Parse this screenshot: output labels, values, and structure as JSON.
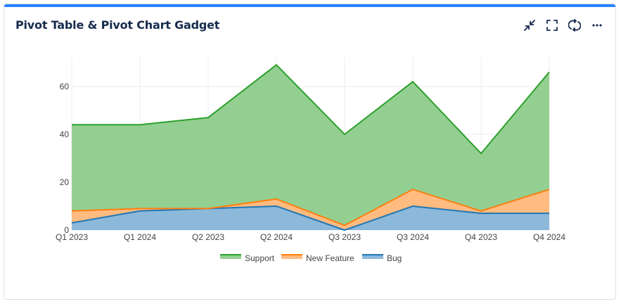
{
  "header": {
    "title": "Pivot Table & Pivot Chart Gadget",
    "actions": [
      "minimize-icon",
      "fullscreen-icon",
      "refresh-icon",
      "more-icon"
    ]
  },
  "colors": {
    "accent": "#2684ff",
    "support_fill": "#94cf92",
    "support_line": "#2ca02c",
    "newfeature_fill": "#ffbb80",
    "newfeature_line": "#ff7f0e",
    "bug_fill": "#8cb8da",
    "bug_line": "#1f77b4"
  },
  "chart_data": {
    "type": "area",
    "stacked": true,
    "categories": [
      "Q1 2023",
      "Q1 2024",
      "Q2 2023",
      "Q2 2024",
      "Q3 2023",
      "Q3 2024",
      "Q4 2023",
      "Q4 2024"
    ],
    "series": [
      {
        "name": "Bug",
        "values": [
          3,
          8,
          9,
          10,
          0,
          10,
          7,
          7
        ]
      },
      {
        "name": "New Feature",
        "values": [
          5,
          1,
          0,
          3,
          2,
          7,
          1,
          10
        ]
      },
      {
        "name": "Support",
        "values": [
          36,
          35,
          38,
          56,
          38,
          45,
          24,
          49
        ]
      }
    ],
    "stack_totals": {
      "Bug": [
        3,
        8,
        9,
        10,
        0,
        10,
        7,
        7
      ],
      "New Feature": [
        8,
        9,
        9,
        13,
        2,
        17,
        8,
        17
      ],
      "Support": [
        44,
        44,
        47,
        69,
        40,
        62,
        32,
        66
      ]
    },
    "yticks": [
      0,
      20,
      40,
      60
    ],
    "ylim": [
      0,
      72
    ],
    "legend": [
      "Support",
      "New Feature",
      "Bug"
    ],
    "legend_position": "bottom",
    "grid": true,
    "title": "",
    "xlabel": "",
    "ylabel": ""
  }
}
